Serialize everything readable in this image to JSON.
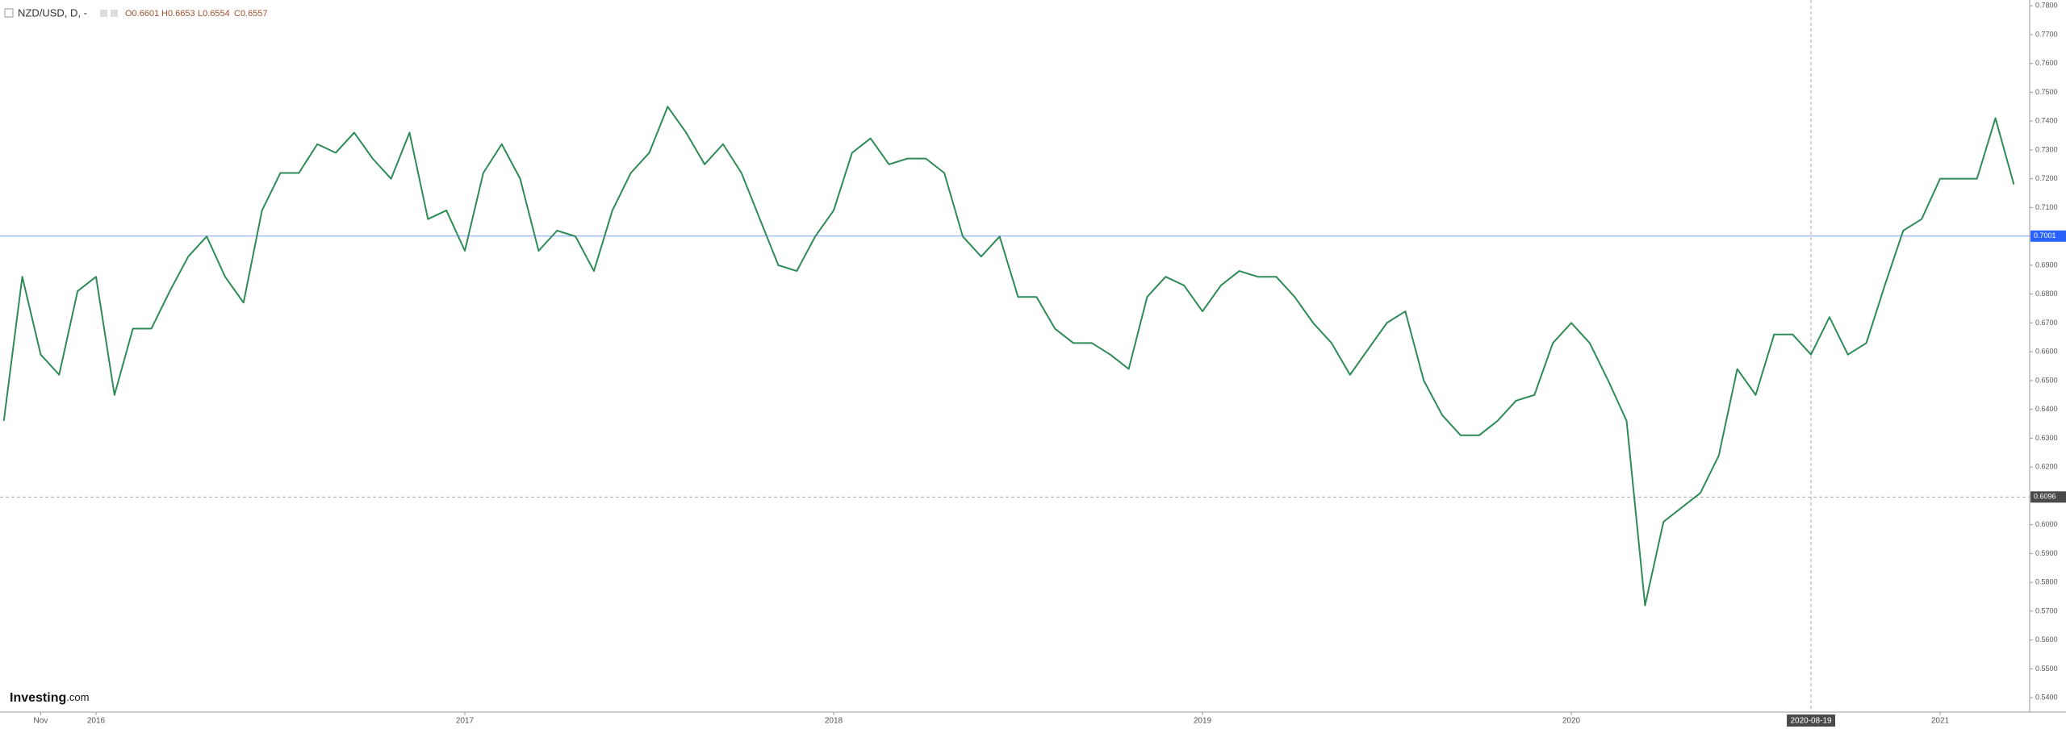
{
  "chart_data": {
    "type": "line",
    "title": "NZD/USD, D, -",
    "legend_values": [
      "O0.6601",
      "H0.6653",
      "L0.6554",
      "C0.6557"
    ],
    "brand": "Investing",
    "brand_suffix": ".com",
    "color": "#2e8b57",
    "categories": [
      null,
      null,
      "Nov",
      null,
      null,
      "2016",
      null,
      null,
      null,
      null,
      null,
      null,
      null,
      null,
      null,
      null,
      null,
      null,
      null,
      null,
      null,
      null,
      null,
      null,
      null,
      "2017",
      null,
      null,
      null,
      null,
      null,
      null,
      null,
      null,
      null,
      null,
      null,
      null,
      null,
      null,
      null,
      null,
      null,
      null,
      null,
      "2018",
      null,
      null,
      null,
      null,
      null,
      null,
      null,
      null,
      null,
      null,
      null,
      null,
      null,
      null,
      null,
      null,
      null,
      null,
      null,
      "2019",
      null,
      null,
      null,
      null,
      null,
      null,
      null,
      null,
      null,
      null,
      null,
      null,
      null,
      null,
      null,
      null,
      null,
      null,
      null,
      "2020",
      null,
      null,
      null,
      null,
      null,
      null,
      null,
      null,
      null,
      null,
      null,
      null,
      "2020-08-19",
      null,
      null,
      null,
      null,
      null,
      null,
      "2021",
      null,
      null,
      null,
      null
    ],
    "values": [
      0.636,
      0.686,
      0.659,
      0.652,
      0.681,
      0.686,
      0.645,
      0.668,
      0.668,
      0.681,
      0.693,
      0.7,
      0.686,
      0.677,
      0.709,
      0.722,
      0.722,
      0.732,
      0.729,
      0.736,
      0.727,
      0.72,
      0.736,
      0.706,
      0.709,
      0.695,
      0.722,
      0.732,
      0.72,
      0.695,
      0.702,
      0.7,
      0.688,
      0.709,
      0.722,
      0.729,
      0.745,
      0.736,
      0.725,
      0.732,
      0.722,
      0.706,
      0.69,
      0.688,
      0.7,
      0.709,
      0.729,
      0.734,
      0.725,
      0.727,
      0.727,
      0.722,
      0.7,
      0.693,
      0.7,
      0.679,
      0.679,
      0.668,
      0.663,
      0.663,
      0.659,
      0.654,
      0.679,
      0.686,
      0.683,
      0.674,
      0.683,
      0.688,
      0.686,
      0.686,
      0.679,
      0.67,
      0.663,
      0.652,
      0.661,
      0.67,
      0.674,
      0.65,
      0.638,
      0.631,
      0.631,
      0.636,
      0.643,
      0.645,
      0.663,
      0.67,
      0.663,
      0.65,
      0.636,
      0.572,
      0.601,
      0.606,
      0.611,
      0.624,
      0.654,
      0.645,
      0.666,
      0.666,
      0.659,
      0.672,
      0.659,
      0.663,
      0.683,
      0.702,
      0.706,
      0.72,
      0.72,
      0.72,
      0.741,
      0.718
    ],
    "ylim": [
      0.535,
      0.782
    ],
    "yticks": [
      {
        "value": 0.54,
        "label": "0.5400"
      },
      {
        "value": 0.55,
        "label": "0.5500"
      },
      {
        "value": 0.56,
        "label": "0.5600"
      },
      {
        "value": 0.57,
        "label": "0.5700"
      },
      {
        "value": 0.58,
        "label": "0.5800"
      },
      {
        "value": 0.59,
        "label": "0.5900"
      },
      {
        "value": 0.6,
        "label": "0.6000"
      },
      {
        "value": 0.61,
        "label": "0.6100"
      },
      {
        "value": 0.62,
        "label": "0.6200"
      },
      {
        "value": 0.63,
        "label": "0.6300"
      },
      {
        "value": 0.64,
        "label": "0.6400"
      },
      {
        "value": 0.65,
        "label": "0.6500"
      },
      {
        "value": 0.66,
        "label": "0.6600"
      },
      {
        "value": 0.67,
        "label": "0.6700"
      },
      {
        "value": 0.68,
        "label": "0.6800"
      },
      {
        "value": 0.69,
        "label": "0.6900"
      },
      {
        "value": 0.7,
        "label": "0.7000"
      },
      {
        "value": 0.71,
        "label": "0.7100"
      },
      {
        "value": 0.72,
        "label": "0.7200"
      },
      {
        "value": 0.73,
        "label": "0.7300"
      },
      {
        "value": 0.74,
        "label": "0.7400"
      },
      {
        "value": 0.75,
        "label": "0.7500"
      },
      {
        "value": 0.76,
        "label": "0.7600"
      },
      {
        "value": 0.77,
        "label": "0.7700"
      },
      {
        "value": 0.78,
        "label": "0.7800"
      }
    ],
    "price_line": {
      "value": 0.7001,
      "label": "0.7001",
      "color": "#2962ff"
    },
    "crosshair": {
      "value": 0.6096,
      "label": "0.6096"
    }
  }
}
